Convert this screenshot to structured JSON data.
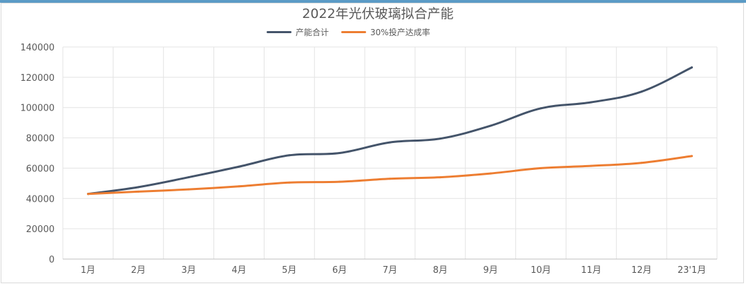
{
  "chart_data": {
    "type": "line",
    "title": "2022年光伏玻璃拟合产能",
    "xlabel": "",
    "ylabel": "",
    "categories": [
      "1月",
      "2月",
      "3月",
      "4月",
      "5月",
      "6月",
      "7月",
      "8月",
      "9月",
      "10月",
      "11月",
      "12月",
      "23'1月"
    ],
    "ylim": [
      0,
      140000
    ],
    "yticks": [
      "0",
      "20000",
      "40000",
      "60000",
      "80000",
      "100000",
      "120000",
      "140000"
    ],
    "grid": true,
    "legend_position": "top-center",
    "series": [
      {
        "name": "产能合计",
        "color": "#44546a",
        "values": [
          43000,
          47500,
          54000,
          61000,
          68500,
          70000,
          77000,
          79500,
          88000,
          99500,
          103500,
          110500,
          126500
        ]
      },
      {
        "name": "30%投产达成率",
        "color": "#ed7d31",
        "values": [
          43000,
          44500,
          46000,
          48000,
          50500,
          51000,
          53000,
          54000,
          56500,
          60000,
          61500,
          63500,
          68000
        ]
      }
    ]
  }
}
